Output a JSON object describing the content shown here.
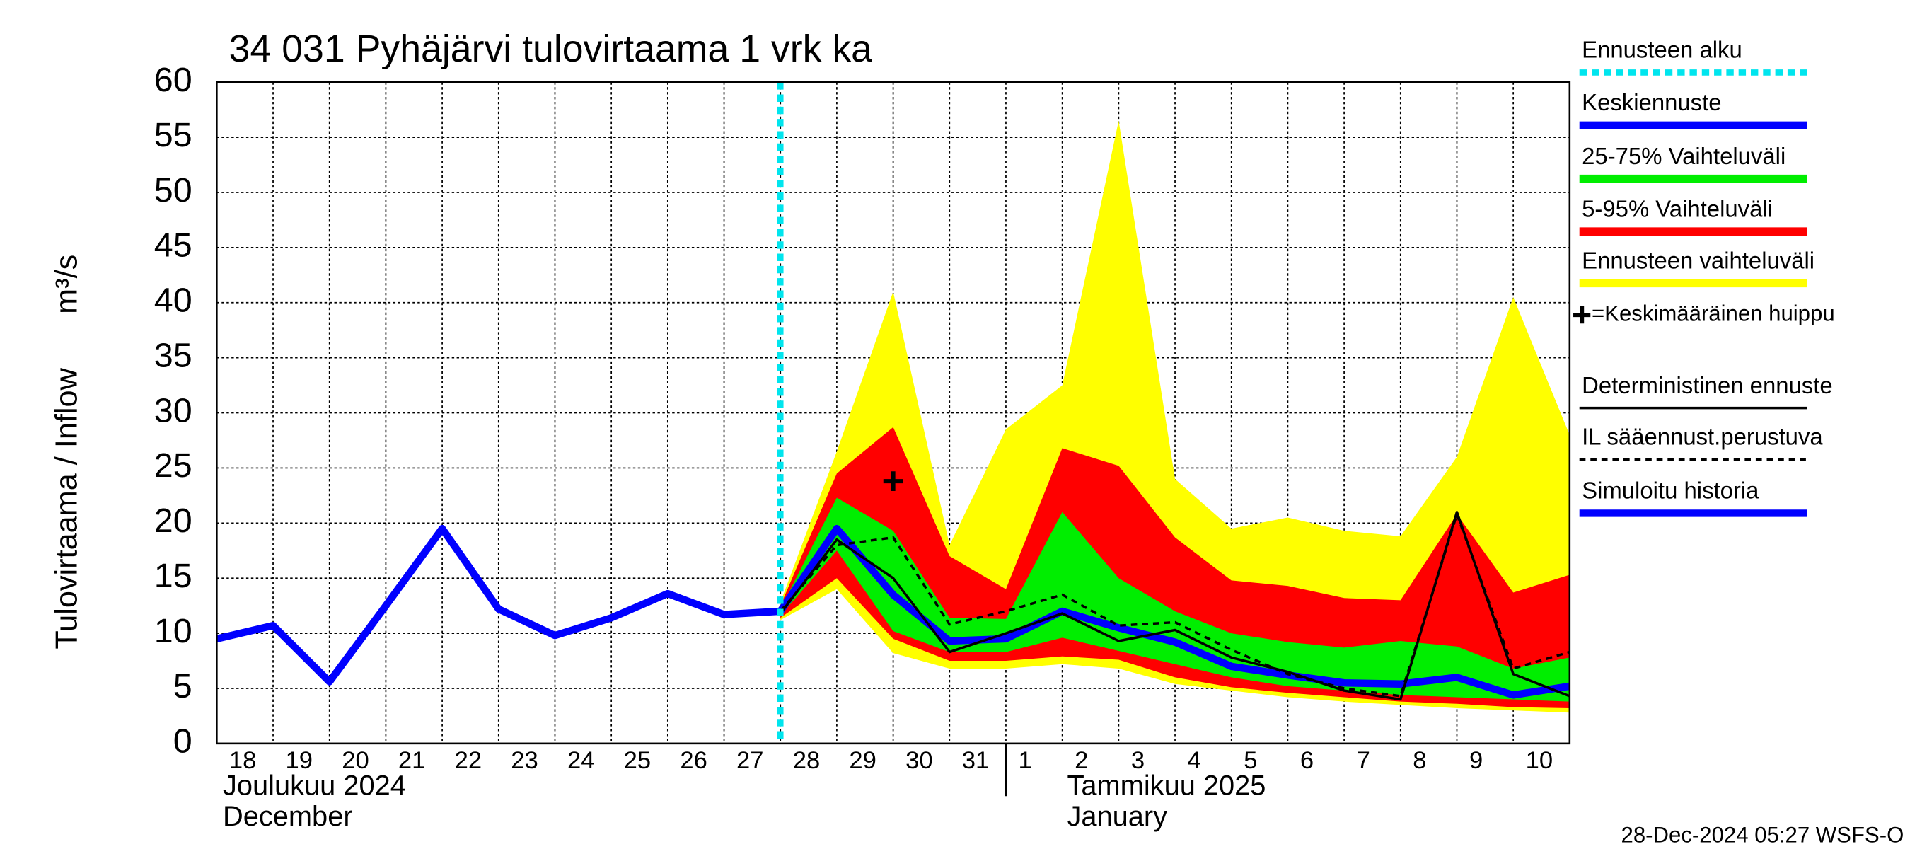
{
  "chart_data": {
    "type": "forecast-band",
    "title": "34 031 Pyhäjärvi tulovirtaama 1 vrk ka",
    "y_label": "Tulovirtaama / Inflow",
    "y_unit": "m³/s",
    "categories": [
      "18",
      "19",
      "20",
      "21",
      "22",
      "23",
      "24",
      "25",
      "26",
      "27",
      "28",
      "29",
      "30",
      "31",
      "1",
      "2",
      "3",
      "4",
      "5",
      "6",
      "7",
      "8",
      "9",
      "10",
      null
    ],
    "month_labels": [
      {
        "index": 0,
        "lines": [
          "Joulukuu  2024",
          "December"
        ]
      },
      {
        "index": 14,
        "lines": [
          "Tammikuu  2025",
          "January"
        ]
      }
    ],
    "ylim": [
      0,
      60
    ],
    "yticks": [
      0,
      5,
      10,
      15,
      20,
      25,
      30,
      35,
      40,
      45,
      50,
      55,
      60
    ],
    "grid": true,
    "forecast_start": 10,
    "series": [
      {
        "name": "Ennusteen alku",
        "kind": "vline",
        "color": "#00e5ee"
      },
      {
        "name": "Keskiennuste",
        "kind": "line",
        "color": "#0000ff",
        "width": 6,
        "values": [
          null,
          null,
          null,
          null,
          null,
          null,
          null,
          null,
          null,
          null,
          12,
          19.5,
          13.5,
          9.3,
          9.5,
          12,
          10.5,
          9.2,
          7,
          6.2,
          5.5,
          5.4,
          6,
          4.4,
          5.2
        ]
      },
      {
        "name": "25-75% Vaihteluväli",
        "kind": "band",
        "color": "#00ee00",
        "high": [
          null,
          null,
          null,
          null,
          null,
          null,
          null,
          null,
          null,
          null,
          12.2,
          22.3,
          19.3,
          11.4,
          11.3,
          21,
          15,
          12,
          10,
          9.2,
          8.7,
          9.3,
          8.8,
          6.8,
          7.8
        ],
        "low": [
          null,
          null,
          null,
          null,
          null,
          null,
          null,
          null,
          null,
          null,
          11.6,
          17.5,
          10.2,
          8.3,
          8.3,
          9.6,
          8.4,
          7.2,
          6,
          5.2,
          4.8,
          4.4,
          4.2,
          4,
          3.8
        ]
      },
      {
        "name": "5-95% Vaihteluväli",
        "kind": "band",
        "color": "#ff0000",
        "high": [
          null,
          null,
          null,
          null,
          null,
          null,
          null,
          null,
          null,
          null,
          12.5,
          24.5,
          28.7,
          17,
          14,
          26.8,
          25.2,
          18.7,
          14.8,
          14.3,
          13.2,
          13,
          20.8,
          13.7,
          15.3
        ],
        "low": [
          null,
          null,
          null,
          null,
          null,
          null,
          null,
          null,
          null,
          null,
          11.4,
          15,
          9.5,
          7.5,
          7.5,
          7.9,
          7.6,
          6,
          5.1,
          4.6,
          4.2,
          3.8,
          3.6,
          3.3,
          3.2
        ]
      },
      {
        "name": "Ennusteen vaihteluväli",
        "kind": "band",
        "color": "#ffff00",
        "high": [
          null,
          null,
          null,
          null,
          null,
          null,
          null,
          null,
          null,
          null,
          12.8,
          26.5,
          41,
          18,
          28.5,
          32.5,
          56.5,
          24,
          19.5,
          20.5,
          19.3,
          18.8,
          26,
          40.5,
          28
        ],
        "low": [
          null,
          null,
          null,
          null,
          null,
          null,
          null,
          null,
          null,
          null,
          11.2,
          14,
          8.2,
          6.8,
          6.8,
          7.2,
          6.8,
          5.4,
          4.8,
          4.2,
          3.8,
          3.5,
          3.2,
          3,
          2.8
        ]
      },
      {
        "name": "=Keskimääräinen huippu",
        "kind": "marker",
        "color": "#000000",
        "values": [
          null,
          null,
          null,
          null,
          null,
          null,
          null,
          null,
          null,
          null,
          null,
          null,
          23.8,
          null,
          null,
          null,
          null,
          null,
          null,
          null,
          null,
          null,
          null,
          null,
          null
        ]
      },
      {
        "name": "Deterministinen ennuste",
        "kind": "line",
        "color": "#000000",
        "width": 2,
        "values": [
          null,
          null,
          null,
          null,
          null,
          null,
          null,
          null,
          13.6,
          11.6,
          11.8,
          18.5,
          15,
          8.3,
          10,
          11.8,
          9.3,
          10.3,
          7.8,
          6.5,
          4.8,
          4,
          21,
          6.3,
          4.3
        ]
      },
      {
        "name": "IL sääennust.perustuva",
        "kind": "dashed",
        "color": "#000000",
        "width": 2,
        "values": [
          null,
          null,
          null,
          null,
          null,
          null,
          null,
          null,
          null,
          null,
          12,
          18,
          18.7,
          10.8,
          12,
          13.5,
          10.7,
          11,
          8.5,
          6.3,
          5,
          4.3,
          20.8,
          6.8,
          8.3
        ]
      },
      {
        "name": "Simuloitu historia",
        "kind": "line",
        "color": "#0000ff",
        "width": 6,
        "values": [
          9.5,
          10.7,
          5.6,
          12.5,
          19.5,
          12.2,
          9.8,
          11.4,
          13.6,
          11.7,
          12,
          null,
          null,
          null,
          null,
          null,
          null,
          null,
          null,
          null,
          null,
          null,
          null,
          null,
          null
        ]
      }
    ],
    "footer": "28-Dec-2024 05:27 WSFS-O"
  }
}
